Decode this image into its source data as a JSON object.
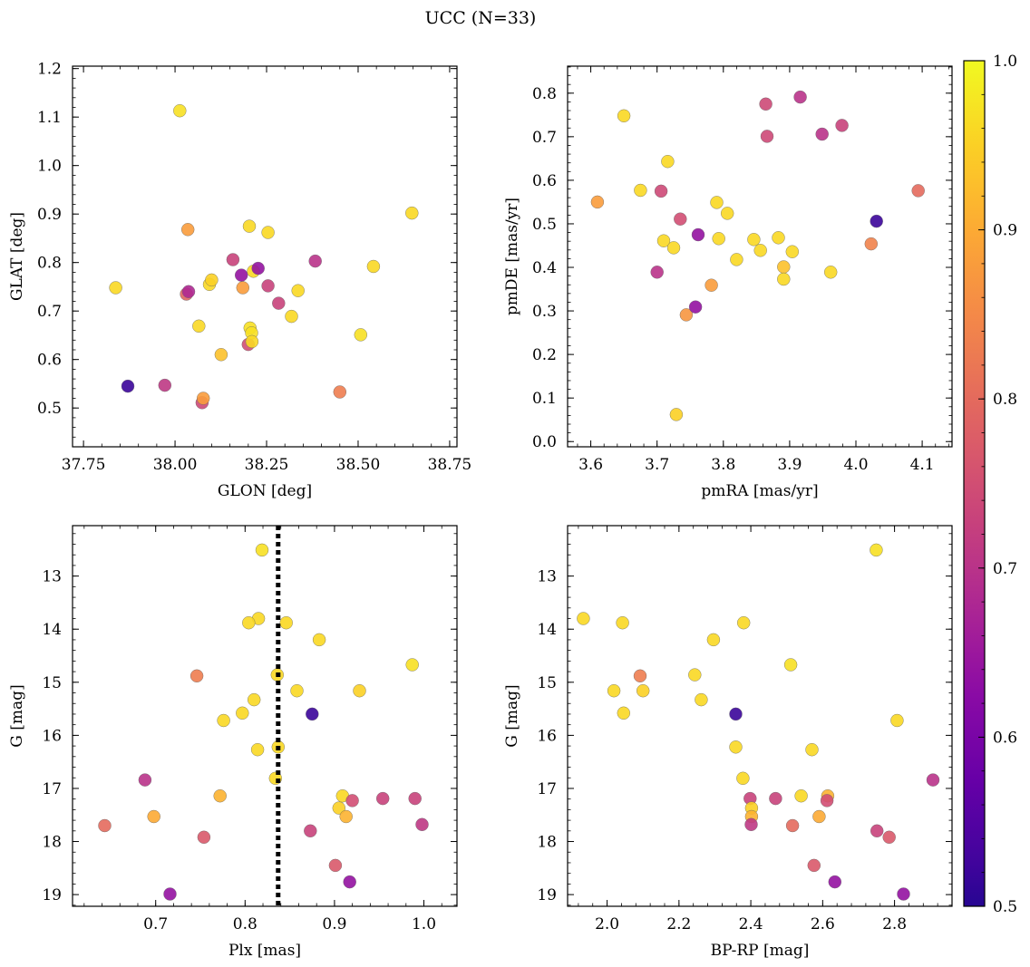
{
  "figure": {
    "suptitle": "UCC (N=33)"
  },
  "colorbar": {
    "min": 0.5,
    "max": 1.0,
    "ticks": [
      0.5,
      0.6,
      0.7,
      0.8,
      0.9,
      1.0
    ],
    "tick_labels": [
      "0.5",
      "0.6",
      "0.7",
      "0.8",
      "0.9",
      "1.0"
    ],
    "colormap": "plasma"
  },
  "chart_data": [
    {
      "type": "scatter",
      "id": "glon-glat",
      "xlabel": "GLON [deg]",
      "ylabel": "GLAT [deg]",
      "xlim": [
        37.72,
        38.77
      ],
      "ylim": [
        0.42,
        1.205
      ],
      "y_inverted": false,
      "xticks": [
        37.75,
        38.0,
        38.25,
        38.5,
        38.75
      ],
      "xtick_labels": [
        "37.75",
        "38.00",
        "38.25",
        "38.50",
        "38.75"
      ],
      "yticks": [
        0.5,
        0.6,
        0.7,
        0.8,
        0.9,
        1.0,
        1.1,
        1.2
      ],
      "ytick_labels": [
        "0.5",
        "0.6",
        "0.7",
        "0.8",
        "0.9",
        "1.0",
        "1.1",
        "1.2"
      ],
      "points": [
        {
          "x": 38.013,
          "y": 1.113,
          "c": 0.97
        },
        {
          "x": 37.838,
          "y": 0.748,
          "c": 0.96
        },
        {
          "x": 37.871,
          "y": 0.545,
          "c": 0.52
        },
        {
          "x": 37.972,
          "y": 0.547,
          "c": 0.71
        },
        {
          "x": 38.035,
          "y": 0.868,
          "c": 0.88
        },
        {
          "x": 38.031,
          "y": 0.735,
          "c": 0.79
        },
        {
          "x": 38.037,
          "y": 0.74,
          "c": 0.68
        },
        {
          "x": 38.065,
          "y": 0.669,
          "c": 0.96
        },
        {
          "x": 38.074,
          "y": 0.511,
          "c": 0.74
        },
        {
          "x": 38.077,
          "y": 0.52,
          "c": 0.88
        },
        {
          "x": 38.094,
          "y": 0.755,
          "c": 0.96
        },
        {
          "x": 38.1,
          "y": 0.764,
          "c": 0.95
        },
        {
          "x": 38.126,
          "y": 0.61,
          "c": 0.93
        },
        {
          "x": 38.158,
          "y": 0.806,
          "c": 0.73
        },
        {
          "x": 38.181,
          "y": 0.774,
          "c": 0.64
        },
        {
          "x": 38.185,
          "y": 0.748,
          "c": 0.88
        },
        {
          "x": 38.2,
          "y": 0.631,
          "c": 0.75
        },
        {
          "x": 38.203,
          "y": 0.875,
          "c": 0.96
        },
        {
          "x": 38.205,
          "y": 0.665,
          "c": 0.97
        },
        {
          "x": 38.209,
          "y": 0.655,
          "c": 0.97
        },
        {
          "x": 38.21,
          "y": 0.637,
          "c": 0.96
        },
        {
          "x": 38.214,
          "y": 0.782,
          "c": 0.96
        },
        {
          "x": 38.227,
          "y": 0.788,
          "c": 0.64
        },
        {
          "x": 38.254,
          "y": 0.862,
          "c": 0.96
        },
        {
          "x": 38.254,
          "y": 0.752,
          "c": 0.73
        },
        {
          "x": 38.283,
          "y": 0.716,
          "c": 0.73
        },
        {
          "x": 38.318,
          "y": 0.689,
          "c": 0.96
        },
        {
          "x": 38.336,
          "y": 0.742,
          "c": 0.96
        },
        {
          "x": 38.383,
          "y": 0.803,
          "c": 0.7
        },
        {
          "x": 38.45,
          "y": 0.533,
          "c": 0.83
        },
        {
          "x": 38.507,
          "y": 0.651,
          "c": 0.97
        },
        {
          "x": 38.542,
          "y": 0.792,
          "c": 0.96
        },
        {
          "x": 38.647,
          "y": 0.902,
          "c": 0.96
        }
      ]
    },
    {
      "type": "scatter",
      "id": "pmra-pmde",
      "xlabel": "pmRA [mas/yr]",
      "ylabel": "pmDE [mas/yr]",
      "xlim": [
        3.565,
        4.145
      ],
      "ylim": [
        -0.012,
        0.862
      ],
      "y_inverted": false,
      "xticks": [
        3.6,
        3.7,
        3.8,
        3.9,
        4.0,
        4.1
      ],
      "xtick_labels": [
        "3.6",
        "3.7",
        "3.8",
        "3.9",
        "4.0",
        "4.1"
      ],
      "yticks": [
        0.0,
        0.1,
        0.2,
        0.3,
        0.4,
        0.5,
        0.6,
        0.7,
        0.8
      ],
      "ytick_labels": [
        "0.0",
        "0.1",
        "0.2",
        "0.3",
        "0.4",
        "0.5",
        "0.6",
        "0.7",
        "0.8"
      ],
      "points": [
        {
          "x": 3.61,
          "y": 0.55,
          "c": 0.88
        },
        {
          "x": 3.65,
          "y": 0.748,
          "c": 0.96
        },
        {
          "x": 3.675,
          "y": 0.577,
          "c": 0.96
        },
        {
          "x": 3.7,
          "y": 0.389,
          "c": 0.7
        },
        {
          "x": 3.706,
          "y": 0.575,
          "c": 0.74
        },
        {
          "x": 3.71,
          "y": 0.461,
          "c": 0.96
        },
        {
          "x": 3.716,
          "y": 0.643,
          "c": 0.96
        },
        {
          "x": 3.725,
          "y": 0.445,
          "c": 0.96
        },
        {
          "x": 3.729,
          "y": 0.062,
          "c": 0.95
        },
        {
          "x": 3.735,
          "y": 0.511,
          "c": 0.75
        },
        {
          "x": 3.744,
          "y": 0.291,
          "c": 0.87
        },
        {
          "x": 3.758,
          "y": 0.309,
          "c": 0.64
        },
        {
          "x": 3.762,
          "y": 0.475,
          "c": 0.64
        },
        {
          "x": 3.782,
          "y": 0.359,
          "c": 0.88
        },
        {
          "x": 3.79,
          "y": 0.549,
          "c": 0.96
        },
        {
          "x": 3.793,
          "y": 0.466,
          "c": 0.96
        },
        {
          "x": 3.806,
          "y": 0.524,
          "c": 0.96
        },
        {
          "x": 3.82,
          "y": 0.418,
          "c": 0.96
        },
        {
          "x": 3.846,
          "y": 0.464,
          "c": 0.96
        },
        {
          "x": 3.856,
          "y": 0.439,
          "c": 0.96
        },
        {
          "x": 3.864,
          "y": 0.775,
          "c": 0.74
        },
        {
          "x": 3.866,
          "y": 0.701,
          "c": 0.74
        },
        {
          "x": 3.883,
          "y": 0.468,
          "c": 0.96
        },
        {
          "x": 3.891,
          "y": 0.401,
          "c": 0.93
        },
        {
          "x": 3.891,
          "y": 0.373,
          "c": 0.96
        },
        {
          "x": 3.904,
          "y": 0.436,
          "c": 0.96
        },
        {
          "x": 3.916,
          "y": 0.791,
          "c": 0.7
        },
        {
          "x": 3.949,
          "y": 0.706,
          "c": 0.7
        },
        {
          "x": 3.962,
          "y": 0.389,
          "c": 0.96
        },
        {
          "x": 3.979,
          "y": 0.726,
          "c": 0.73
        },
        {
          "x": 4.023,
          "y": 0.454,
          "c": 0.84
        },
        {
          "x": 4.031,
          "y": 0.506,
          "c": 0.52
        },
        {
          "x": 4.094,
          "y": 0.576,
          "c": 0.8
        }
      ]
    },
    {
      "type": "scatter",
      "id": "plx-g",
      "xlabel": "Plx [mas]",
      "ylabel": "G [mag]",
      "xlim": [
        0.607,
        1.037
      ],
      "ylim": [
        12.05,
        19.22
      ],
      "y_inverted": true,
      "vline": 0.837,
      "xticks": [
        0.7,
        0.8,
        0.9,
        1.0
      ],
      "xtick_labels": [
        "0.7",
        "0.8",
        "0.9",
        "1.0"
      ],
      "yticks": [
        13,
        14,
        15,
        16,
        17,
        18,
        19
      ],
      "ytick_labels": [
        "13",
        "14",
        "15",
        "16",
        "17",
        "18",
        "19"
      ],
      "points": [
        {
          "x": 0.819,
          "y": 12.51,
          "c": 0.97
        },
        {
          "x": 0.815,
          "y": 13.8,
          "c": 0.96
        },
        {
          "x": 0.804,
          "y": 13.88,
          "c": 0.96
        },
        {
          "x": 0.846,
          "y": 13.88,
          "c": 0.96
        },
        {
          "x": 0.883,
          "y": 14.2,
          "c": 0.96
        },
        {
          "x": 0.987,
          "y": 14.67,
          "c": 0.97
        },
        {
          "x": 0.746,
          "y": 14.88,
          "c": 0.83
        },
        {
          "x": 0.836,
          "y": 14.86,
          "c": 0.96
        },
        {
          "x": 0.858,
          "y": 15.16,
          "c": 0.96
        },
        {
          "x": 0.928,
          "y": 15.16,
          "c": 0.95
        },
        {
          "x": 0.81,
          "y": 15.33,
          "c": 0.96
        },
        {
          "x": 0.797,
          "y": 15.58,
          "c": 0.96
        },
        {
          "x": 0.776,
          "y": 15.72,
          "c": 0.96
        },
        {
          "x": 0.875,
          "y": 15.6,
          "c": 0.52
        },
        {
          "x": 0.837,
          "y": 16.22,
          "c": 0.96
        },
        {
          "x": 0.814,
          "y": 16.27,
          "c": 0.96
        },
        {
          "x": 0.834,
          "y": 16.81,
          "c": 0.96
        },
        {
          "x": 0.688,
          "y": 16.84,
          "c": 0.7
        },
        {
          "x": 0.772,
          "y": 17.14,
          "c": 0.91
        },
        {
          "x": 0.909,
          "y": 17.14,
          "c": 0.96
        },
        {
          "x": 0.92,
          "y": 17.23,
          "c": 0.75
        },
        {
          "x": 0.954,
          "y": 17.19,
          "c": 0.73
        },
        {
          "x": 0.99,
          "y": 17.19,
          "c": 0.73
        },
        {
          "x": 0.905,
          "y": 17.37,
          "c": 0.95
        },
        {
          "x": 0.698,
          "y": 17.53,
          "c": 0.9
        },
        {
          "x": 0.913,
          "y": 17.53,
          "c": 0.91
        },
        {
          "x": 0.643,
          "y": 17.7,
          "c": 0.8
        },
        {
          "x": 0.998,
          "y": 17.68,
          "c": 0.71
        },
        {
          "x": 0.873,
          "y": 17.8,
          "c": 0.73
        },
        {
          "x": 0.754,
          "y": 17.92,
          "c": 0.77
        },
        {
          "x": 0.901,
          "y": 18.45,
          "c": 0.77
        },
        {
          "x": 0.917,
          "y": 18.76,
          "c": 0.64
        },
        {
          "x": 0.716,
          "y": 18.99,
          "c": 0.64
        }
      ]
    },
    {
      "type": "scatter",
      "id": "bprp-g",
      "xlabel": "BP-RP [mag]",
      "ylabel": "G [mag]",
      "xlim": [
        1.89,
        2.96
      ],
      "ylim": [
        12.05,
        19.22
      ],
      "y_inverted": true,
      "xticks": [
        2.0,
        2.2,
        2.4,
        2.6,
        2.8
      ],
      "xtick_labels": [
        "2.0",
        "2.2",
        "2.4",
        "2.6",
        "2.8"
      ],
      "yticks": [
        13,
        14,
        15,
        16,
        17,
        18,
        19
      ],
      "ytick_labels": [
        "13",
        "14",
        "15",
        "16",
        "17",
        "18",
        "19"
      ],
      "points": [
        {
          "x": 2.749,
          "y": 12.51,
          "c": 0.97
        },
        {
          "x": 1.934,
          "y": 13.8,
          "c": 0.96
        },
        {
          "x": 2.043,
          "y": 13.88,
          "c": 0.96
        },
        {
          "x": 2.38,
          "y": 13.88,
          "c": 0.96
        },
        {
          "x": 2.296,
          "y": 14.2,
          "c": 0.96
        },
        {
          "x": 2.511,
          "y": 14.67,
          "c": 0.97
        },
        {
          "x": 2.092,
          "y": 14.88,
          "c": 0.83
        },
        {
          "x": 2.244,
          "y": 14.86,
          "c": 0.96
        },
        {
          "x": 2.019,
          "y": 15.16,
          "c": 0.96
        },
        {
          "x": 2.1,
          "y": 15.16,
          "c": 0.95
        },
        {
          "x": 2.262,
          "y": 15.33,
          "c": 0.96
        },
        {
          "x": 2.046,
          "y": 15.58,
          "c": 0.96
        },
        {
          "x": 2.807,
          "y": 15.72,
          "c": 0.96
        },
        {
          "x": 2.358,
          "y": 15.6,
          "c": 0.52
        },
        {
          "x": 2.358,
          "y": 16.22,
          "c": 0.96
        },
        {
          "x": 2.57,
          "y": 16.27,
          "c": 0.96
        },
        {
          "x": 2.378,
          "y": 16.81,
          "c": 0.96
        },
        {
          "x": 2.907,
          "y": 16.84,
          "c": 0.7
        },
        {
          "x": 2.614,
          "y": 17.14,
          "c": 0.91
        },
        {
          "x": 2.54,
          "y": 17.14,
          "c": 0.96
        },
        {
          "x": 2.612,
          "y": 17.23,
          "c": 0.75
        },
        {
          "x": 2.398,
          "y": 17.19,
          "c": 0.73
        },
        {
          "x": 2.469,
          "y": 17.19,
          "c": 0.73
        },
        {
          "x": 2.402,
          "y": 17.37,
          "c": 0.95
        },
        {
          "x": 2.59,
          "y": 17.53,
          "c": 0.9
        },
        {
          "x": 2.402,
          "y": 17.53,
          "c": 0.91
        },
        {
          "x": 2.516,
          "y": 17.7,
          "c": 0.8
        },
        {
          "x": 2.401,
          "y": 17.68,
          "c": 0.71
        },
        {
          "x": 2.751,
          "y": 17.8,
          "c": 0.73
        },
        {
          "x": 2.785,
          "y": 17.92,
          "c": 0.77
        },
        {
          "x": 2.576,
          "y": 18.45,
          "c": 0.77
        },
        {
          "x": 2.634,
          "y": 18.76,
          "c": 0.64
        },
        {
          "x": 2.825,
          "y": 18.99,
          "c": 0.64
        }
      ]
    }
  ]
}
